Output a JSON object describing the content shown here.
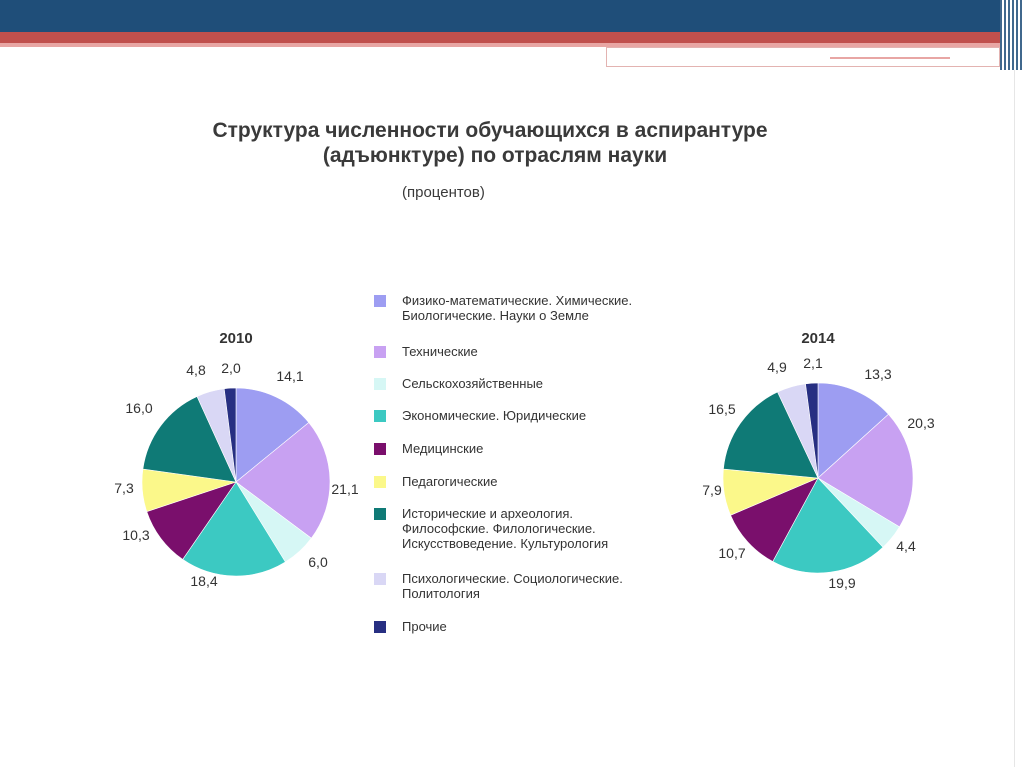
{
  "title_line1": "Структура численности обучающихся в аспирантуре",
  "title_line2": "(адъюнктуре) по отраслям науки",
  "subtitle": "(процентов)",
  "categories": [
    {
      "label": "Физико-математические. Химические.\nБиологические. Науки о Земле",
      "color": "#9d9df2"
    },
    {
      "label": "Технические",
      "color": "#c8a1f2"
    },
    {
      "label": "Сельскохозяйственные",
      "color": "#d6f7f5"
    },
    {
      "label": "Экономические. Юридические",
      "color": "#3cc9c2"
    },
    {
      "label": "Медицинские",
      "color": "#7a0f6c"
    },
    {
      "label": "Педагогические",
      "color": "#fbf88a"
    },
    {
      "label": "Исторические и археология.\nФилософские. Филологические.\nИскусствоведение. Культурология",
      "color": "#0f7a76"
    },
    {
      "label": "Психологические. Социологические.\nПолитология",
      "color": "#d9d7f5"
    },
    {
      "label": "Прочие",
      "color": "#272f82"
    }
  ],
  "chart_data": [
    {
      "type": "pie",
      "title": "2010",
      "categories": [
        "Физико-математические. Химические. Биологические. Науки о Земле",
        "Технические",
        "Сельскохозяйственные",
        "Экономические. Юридические",
        "Медицинские",
        "Педагогические",
        "Исторические и археология. Философские. Филологические. Искусствоведение. Культурология",
        "Психологические. Социологические. Политология",
        "Прочие"
      ],
      "values": [
        14.1,
        21.1,
        6.0,
        18.4,
        10.3,
        7.3,
        16.0,
        4.8,
        2.0
      ],
      "value_labels": [
        "14,1",
        "21,1",
        "6,0",
        "18,4",
        "10,3",
        "7,3",
        "16,0",
        "4,8",
        "2,0"
      ]
    },
    {
      "type": "pie",
      "title": "2014",
      "categories": [
        "Физико-математические. Химические. Биологические. Науки о Земле",
        "Технические",
        "Сельскохозяйственные",
        "Экономические. Юридические",
        "Медицинские",
        "Педагогические",
        "Исторические и археология. Философские. Филологические. Искусствоведение. Культурология",
        "Психологические. Социологические. Политология",
        "Прочие"
      ],
      "values": [
        13.3,
        20.3,
        4.4,
        19.9,
        10.7,
        7.9,
        16.5,
        4.9,
        2.1
      ],
      "value_labels": [
        "13,3",
        "20,3",
        "4,4",
        "19,9",
        "10,7",
        "7,9",
        "16,5",
        "4,9",
        "2,1"
      ]
    }
  ]
}
